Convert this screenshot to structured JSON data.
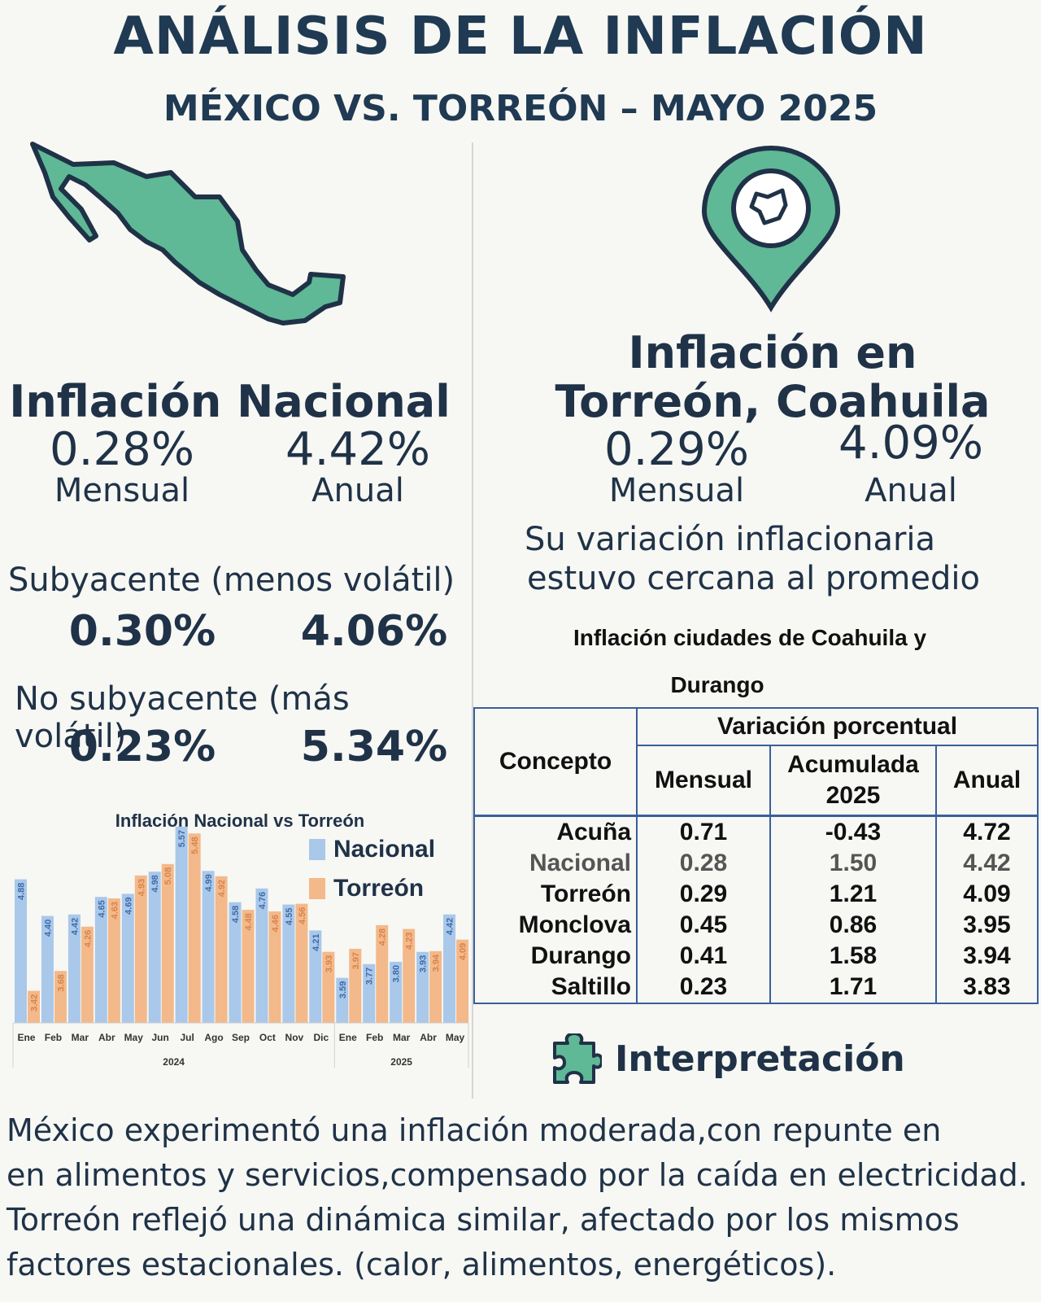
{
  "header": {
    "title": "ANÁLISIS DE LA INFLACIÓN",
    "subtitle": "MÉXICO VS. TORREÓN – MAYO 2025"
  },
  "nacional": {
    "title": "Inflación Nacional",
    "mensual": "0.28%",
    "anual": "4.42%",
    "mensual_label": "Mensual",
    "anual_label": "Anual",
    "subyacente_label": "Subyacente (menos volátil)",
    "subyacente_mensual": "0.30%",
    "subyacente_anual": "4.06%",
    "no_subyacente_label": "No subyacente (más volátil)",
    "no_subyacente_mensual": "0.23%",
    "no_subyacente_anual": "5.34%"
  },
  "torreon": {
    "title_line1": "Inflación en",
    "title_line2": "Torreón, Coahuila",
    "mensual": "0.29%",
    "anual": "4.09%",
    "mensual_label": "Mensual",
    "anual_label": "Anual",
    "note_line1": "Su variación inflacionaria",
    "note_line2": "estuvo cercana al promedio"
  },
  "colors": {
    "accent_green": "#5fb896",
    "dark_navy": "#1f3247",
    "nacional_bar": "#a9c8ea",
    "torreon_bar": "#f3b98a",
    "table_border": "#3a5f9a"
  },
  "table": {
    "title_line1": "Inflación ciudades de Coahuila y",
    "title_line2": "Durango",
    "header_concepto": "Concepto",
    "header_variacion": "Variación porcentual",
    "header_mensual": "Mensual",
    "header_acumulada": "Acumulada 2025",
    "header_anual": "Anual",
    "rows": [
      {
        "city": "Acuña",
        "mensual": "0.71",
        "acumulada": "-0.43",
        "anual": "4.72"
      },
      {
        "city": "Nacional",
        "mensual": "0.28",
        "acumulada": "1.50",
        "anual": "4.42"
      },
      {
        "city": "Torreón",
        "mensual": "0.29",
        "acumulada": "1.21",
        "anual": "4.09"
      },
      {
        "city": "Monclova",
        "mensual": "0.45",
        "acumulada": "0.86",
        "anual": "3.95"
      },
      {
        "city": "Durango",
        "mensual": "0.41",
        "acumulada": "1.58",
        "anual": "3.94"
      },
      {
        "city": "Saltillo",
        "mensual": "0.23",
        "acumulada": "1.71",
        "anual": "3.83"
      }
    ]
  },
  "interpretacion": {
    "title": "Interpretación",
    "line1": "México experimentó una inflación  moderada,con repunte en",
    "line2": "en alimentos  y servicios,compensado por la caída en electricidad.",
    "line3": "Torreón reflejó  una dinámica similar,  afectado por los mismos",
    "line4": "factores  estacionales. (calor, alimentos, energéticos)."
  },
  "chart_data": {
    "type": "bar",
    "title": "Inflación Nacional vs Torreón",
    "categories": [
      "Ene",
      "Feb",
      "Mar",
      "Abr",
      "May",
      "Jun",
      "Jul",
      "Ago",
      "Sep",
      "Oct",
      "Nov",
      "Dic",
      "Ene",
      "Feb",
      "Mar",
      "Abr",
      "May"
    ],
    "years": [
      {
        "label": "2024",
        "months": 12
      },
      {
        "label": "2025",
        "months": 5
      }
    ],
    "series": [
      {
        "name": "Nacional",
        "color": "#a9c8ea",
        "values": [
          4.88,
          4.4,
          4.42,
          4.65,
          4.69,
          4.98,
          5.57,
          4.99,
          4.58,
          4.76,
          4.55,
          4.21,
          3.59,
          3.77,
          3.8,
          3.93,
          4.42
        ]
      },
      {
        "name": "Torreón",
        "color": "#f3b98a",
        "values": [
          3.42,
          3.68,
          4.26,
          4.63,
          4.93,
          5.08,
          5.48,
          4.92,
          4.48,
          4.46,
          4.56,
          3.93,
          3.97,
          4.28,
          4.23,
          3.94,
          4.09
        ]
      }
    ],
    "ylim": [
      3.0,
      5.6
    ],
    "legend": "top-right",
    "xlabel": "",
    "ylabel": ""
  }
}
